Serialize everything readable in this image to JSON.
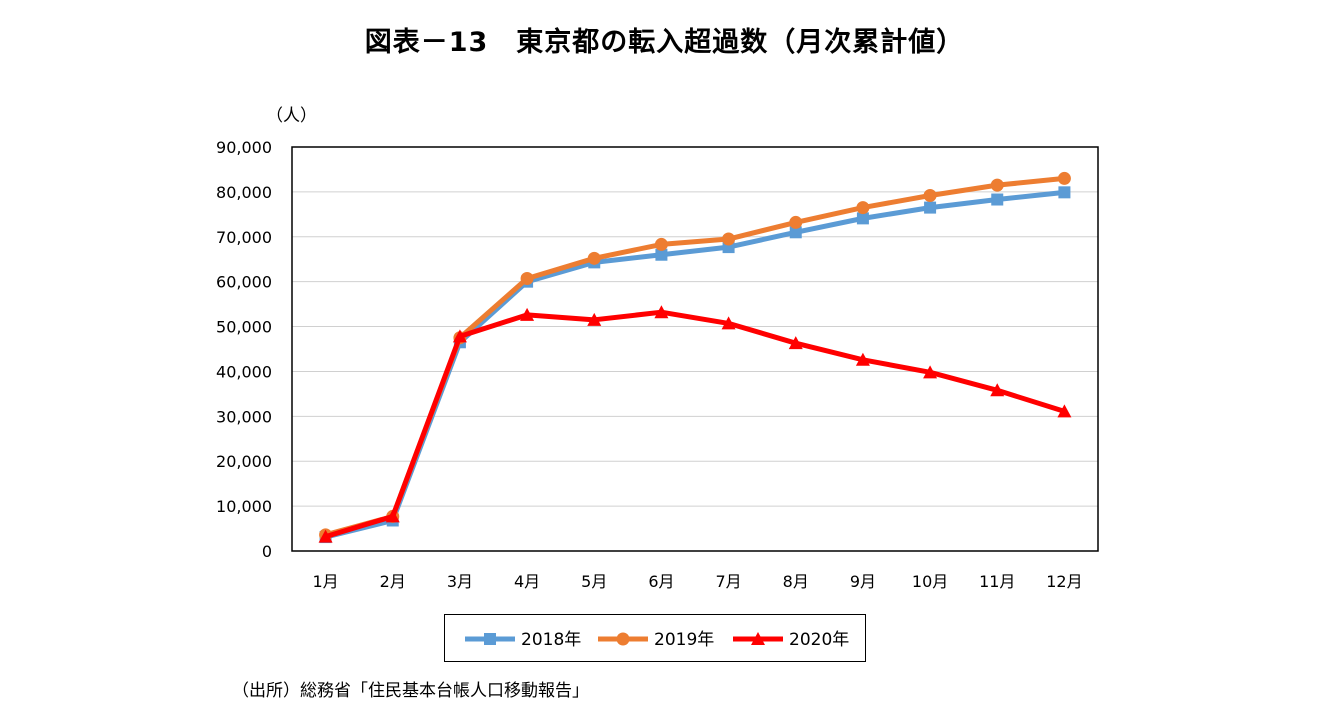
{
  "page": {
    "title": "図表－13　東京都の転入超過数（月次累計値）",
    "unit_label": "（人）",
    "source": "（出所）総務省「住民基本台帳人口移動報告」"
  },
  "chart_data": {
    "type": "line",
    "title": "図表－13　東京都の転入超過数（月次累計値）",
    "ylabel": "（人）",
    "xlabel": "",
    "categories": [
      "1月",
      "2月",
      "3月",
      "4月",
      "5月",
      "6月",
      "7月",
      "8月",
      "9月",
      "10月",
      "11月",
      "12月"
    ],
    "ylim": [
      0,
      90000
    ],
    "yticks": [
      0,
      10000,
      20000,
      30000,
      40000,
      50000,
      60000,
      70000,
      80000,
      90000
    ],
    "ytick_labels": [
      "0",
      "10,000",
      "20,000",
      "30,000",
      "40,000",
      "50,000",
      "60,000",
      "70,000",
      "80,000",
      "90,000"
    ],
    "grid": true,
    "legend_position": "bottom",
    "series": [
      {
        "name": "2018年",
        "color": "#5B9BD5",
        "marker": "square",
        "values": [
          3100,
          6800,
          46500,
          60000,
          64300,
          66000,
          67700,
          71000,
          74100,
          76500,
          78300,
          79900
        ]
      },
      {
        "name": "2019年",
        "color": "#ED7D31",
        "marker": "circle",
        "values": [
          3600,
          7700,
          47500,
          60700,
          65200,
          68300,
          69500,
          73200,
          76500,
          79200,
          81500,
          83000
        ]
      },
      {
        "name": "2020年",
        "color": "#FF0000",
        "marker": "triangle",
        "values": [
          3200,
          7700,
          47800,
          52600,
          51500,
          53200,
          50700,
          46300,
          42600,
          39800,
          35800,
          31100
        ]
      }
    ]
  }
}
